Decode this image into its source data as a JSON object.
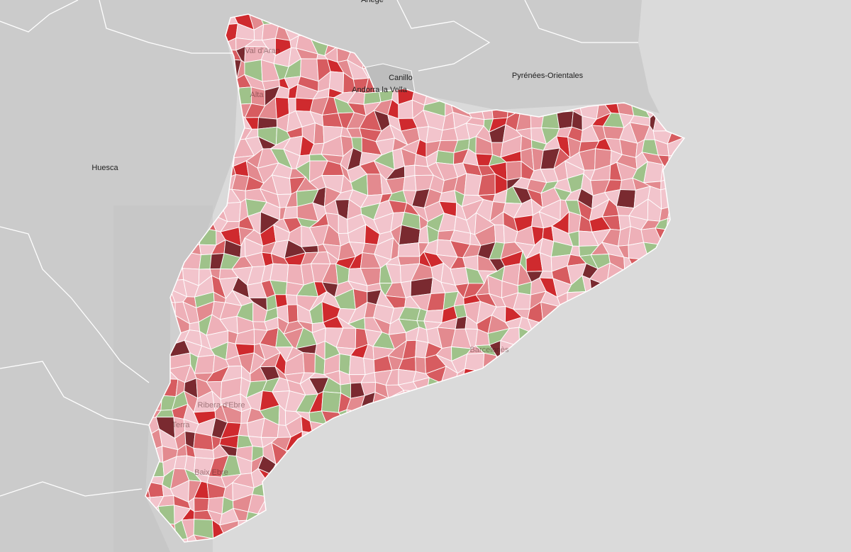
{
  "map": {
    "place_labels": [
      "Ariège",
      "Canillo",
      "Andorra la Vella",
      "Pyrénées-Orientales",
      "Huesca"
    ],
    "region_labels": [
      "Val d'Aran",
      "Alta",
      "Barcelonès",
      "Baix Ebre",
      "Terra",
      "Ribera d'Ebre"
    ],
    "palette": [
      "#f2c4cc",
      "#eeb0b8",
      "#e38a8f",
      "#d75c60",
      "#cf2a2e",
      "#7a2a30",
      "#9fc28a"
    ]
  }
}
